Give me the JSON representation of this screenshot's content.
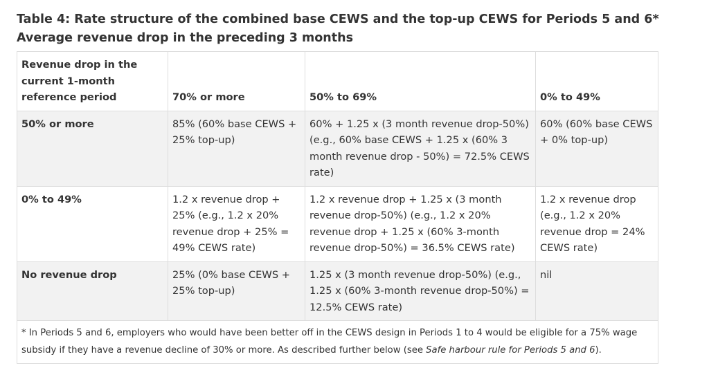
{
  "title": "Table 4: Rate structure of the combined base CEWS and the top-up CEWS for Periods 5 and 6*",
  "subtitle": "Average revenue drop in the preceding 3 months",
  "table": {
    "headers": [
      "Revenue drop in the current 1-month reference period",
      "70% or more",
      "50% to 69%",
      "0% to 49%"
    ],
    "rows": [
      {
        "label": "50% or more",
        "cells": [
          "85% (60% base CEWS + 25% top-up)",
          "60% + 1.25 x (3 month revenue drop-50%) (e.g., 60% base CEWS + 1.25 x (60% 3 month revenue drop - 50%) = 72.5% CEWS rate)",
          "60% (60% base CEWS + 0% top-up)"
        ]
      },
      {
        "label": "0% to 49%",
        "cells": [
          "1.2 x revenue drop + 25% (e.g., 1.2 x 20% revenue drop + 25% = 49% CEWS rate)",
          "1.2 x revenue drop + 1.25 x (3 month revenue drop-50%) (e.g., 1.2 x 20% revenue drop + 1.25 x (60% 3-month revenue drop-50%) = 36.5% CEWS rate)",
          "1.2 x revenue drop (e.g., 1.2 x 20% revenue drop = 24% CEWS rate)"
        ]
      },
      {
        "label": "No revenue drop",
        "cells": [
          "25% (0% base CEWS + 25% top-up)",
          "1.25 x (3 month revenue drop-50%) (e.g., 1.25 x (60% 3-month revenue drop-50%) = 12.5% CEWS rate)",
          "nil"
        ]
      }
    ],
    "footnote_before": "* In Periods 5 and 6, employers who would have been better off in the CEWS design in Periods 1 to 4 would be eligible for a 75% wage subsidy if they have a revenue decline of 30% or more. As described further below (see ",
    "footnote_link": "Safe harbour rule for Periods 5 and 6",
    "footnote_after": ")."
  }
}
